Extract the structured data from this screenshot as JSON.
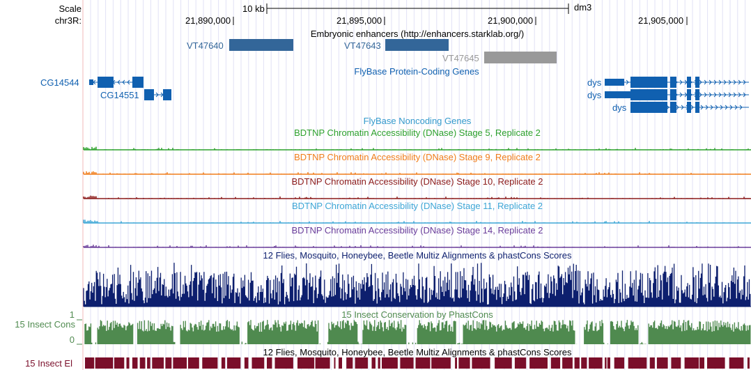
{
  "scale_label": "Scale",
  "chrom_label": "chr3R:",
  "scale_bar_text": "10 kb",
  "assembly": "dm3",
  "ruler_ticks": [
    "21,890,000",
    "21,895,000",
    "21,900,000",
    "21,905,000"
  ],
  "tracks": {
    "enhancers": {
      "title": "Embryonic enhancers (http://enhancers.starklab.org/)",
      "color": "#336699",
      "items": [
        {
          "name": "VT47640",
          "color": "#336699"
        },
        {
          "name": "VT47643",
          "color": "#336699"
        },
        {
          "name": "VT47645",
          "color": "#999999"
        }
      ]
    },
    "flybase_protein": {
      "title": "FlyBase Protein-Coding Genes",
      "color": "#1060b0",
      "genes": [
        "CG14544",
        "CG14551",
        "dys",
        "dys",
        "dys"
      ]
    },
    "flybase_noncoding": {
      "title": "FlyBase Noncoding Genes",
      "color": "#3399cc"
    },
    "dnase": [
      {
        "title": "BDTNP Chromatin Accessibility (DNase) Stage 5, Replicate 2",
        "color": "#2ca02c"
      },
      {
        "title": "BDTNP Chromatin Accessibility (DNase) Stage 9, Replicate 2",
        "color": "#f07d1a"
      },
      {
        "title": "BDTNP Chromatin Accessibility (DNase) Stage 10, Replicate 2",
        "color": "#8b1a1a"
      },
      {
        "title": "BDTNP Chromatin Accessibility (DNase) Stage 11, Replicate 2",
        "color": "#3da6d6"
      },
      {
        "title": "BDTNP Chromatin Accessibility (DNase) Stage 14, Replicate 2",
        "color": "#6a3d9a"
      }
    ],
    "multiz": {
      "title": "12 Flies, Mosquito, Honeybee, Beetle Multiz Alignments & phastCons Scores",
      "color": "#0d1f6e"
    },
    "phastcons": {
      "title": "15 Insect Conservation by PhastCons",
      "left_label": "15 Insect Cons",
      "ymax": "1",
      "ymin": "0",
      "color": "#4f8a4f"
    },
    "elements": {
      "title": "12 Flies, Mosquito, Honeybee, Beetle Multiz Alignments & phastCons Scores",
      "left_label": "15 Insect El",
      "color": "#7a0e2a"
    }
  }
}
